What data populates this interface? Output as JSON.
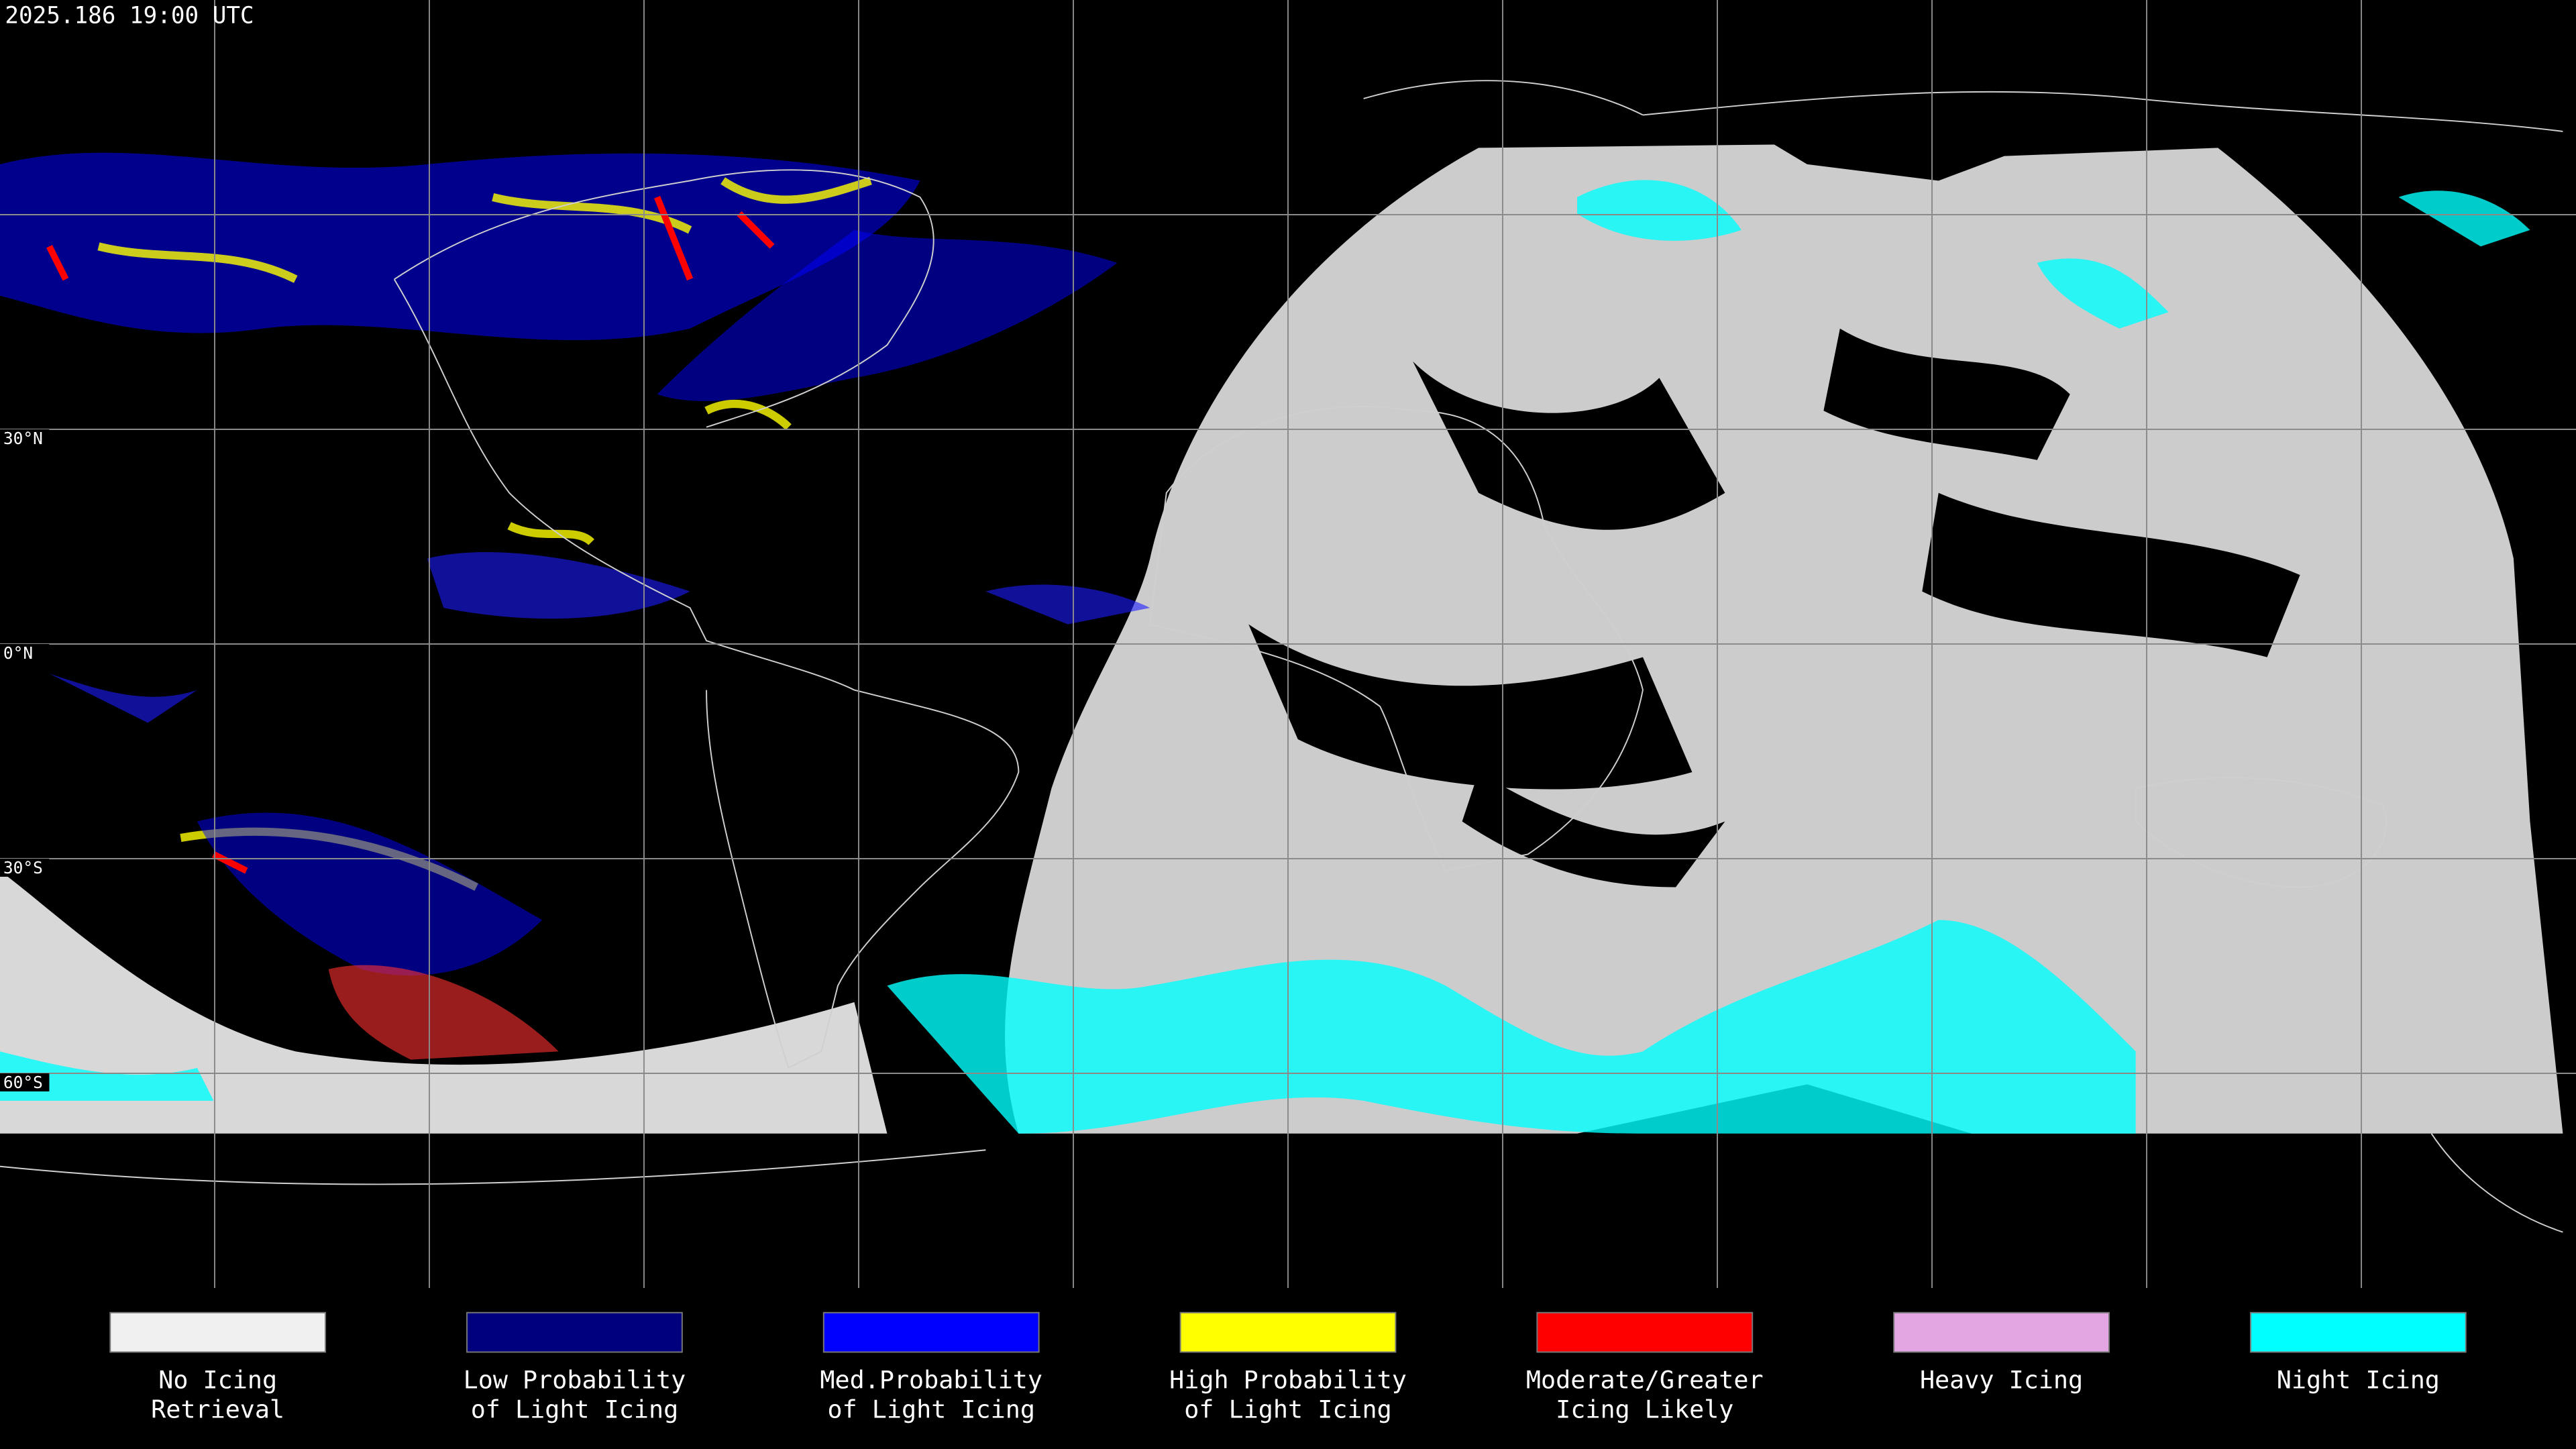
{
  "title": "2025.186 19:00 UTC",
  "lat_labels": [
    "30°N",
    "0°N",
    "30°S",
    "60°S"
  ],
  "legend": [
    {
      "lines": [
        "No Icing",
        "Retrieval"
      ],
      "color": "#f0f0f0"
    },
    {
      "lines": [
        "Low Probability",
        "of Light Icing"
      ],
      "color": "#00007f"
    },
    {
      "lines": [
        "Med.Probability",
        "of Light Icing"
      ],
      "color": "#0000ff"
    },
    {
      "lines": [
        "High Probability",
        "of Light Icing"
      ],
      "color": "#ffff00"
    },
    {
      "lines": [
        "Moderate/Greater",
        "Icing Likely"
      ],
      "color": "#ff0000"
    },
    {
      "lines": [
        "Heavy Icing"
      ],
      "color": "#e3a6e3"
    },
    {
      "lines": [
        "Night Icing"
      ],
      "color": "#00ffff"
    }
  ]
}
